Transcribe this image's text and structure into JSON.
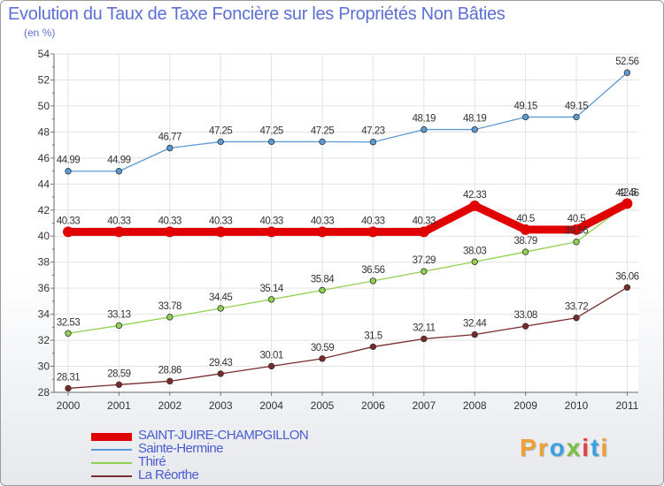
{
  "title": "Evolution du Taux de Taxe Foncière sur les Propriétés Non Bâties",
  "subtitle": "(en %)",
  "logo": {
    "text": "Proxiti",
    "letters": [
      "P",
      "r",
      "o",
      "x",
      "i",
      "t",
      "i"
    ],
    "colors": [
      "#f0a030",
      "#f0a030",
      "#3aa0e0",
      "#7ac040",
      "#e04040",
      "#3aa0e0",
      "#f0a030"
    ]
  },
  "chart_data": {
    "type": "line",
    "x": [
      "2000",
      "2001",
      "2002",
      "2003",
      "2004",
      "2005",
      "2006",
      "2007",
      "2008",
      "2009",
      "2010",
      "2011"
    ],
    "ylim": [
      28,
      54
    ],
    "yticks": [
      28,
      30,
      32,
      34,
      36,
      38,
      40,
      42,
      44,
      46,
      48,
      50,
      52,
      54
    ],
    "grid": true,
    "legend_position": "bottom-left",
    "series": [
      {
        "name": "SAINT-JUIRE-CHAMPGILLON",
        "color": "#e00000",
        "values": [
          40.33,
          40.33,
          40.33,
          40.33,
          40.33,
          40.33,
          40.33,
          40.33,
          42.33,
          40.5,
          40.5,
          42.5
        ],
        "labels": [
          "40.33",
          "40.33",
          "40.33",
          "40.33",
          "40.33",
          "40.33",
          "40.33",
          "40.33",
          "42.33",
          "40.5",
          "40.5",
          "42.5"
        ]
      },
      {
        "name": "Sainte-Hermine",
        "color": "#5b9bd5",
        "values": [
          44.99,
          44.99,
          46.77,
          47.25,
          47.25,
          47.25,
          47.23,
          48.19,
          48.19,
          49.15,
          49.15,
          52.56
        ],
        "labels": [
          "44.99",
          "44.99",
          "46.77",
          "47.25",
          "47.25",
          "47.25",
          "47.23",
          "48.19",
          "48.19",
          "49.15",
          "49.15",
          "52.56"
        ]
      },
      {
        "name": "Thiré",
        "color": "#92d050",
        "values": [
          32.53,
          33.13,
          33.78,
          34.45,
          35.14,
          35.84,
          36.56,
          37.29,
          38.03,
          38.79,
          39.56,
          42.46
        ],
        "labels": [
          "32.53",
          "33.13",
          "33.78",
          "34.45",
          "35.14",
          "35.84",
          "36.56",
          "37.29",
          "38.03",
          "38.79",
          "39.56",
          "42.46"
        ]
      },
      {
        "name": "La Réorthe",
        "color": "#7a2a2a",
        "values": [
          28.31,
          28.59,
          28.86,
          29.43,
          30.01,
          30.59,
          31.5,
          32.11,
          32.44,
          33.08,
          33.72,
          36.06
        ],
        "labels": [
          "28.31",
          "28.59",
          "28.86",
          "29.43",
          "30.01",
          "30.59",
          "31.5",
          "32.11",
          "32.44",
          "33.08",
          "33.72",
          "36.06"
        ]
      }
    ]
  }
}
